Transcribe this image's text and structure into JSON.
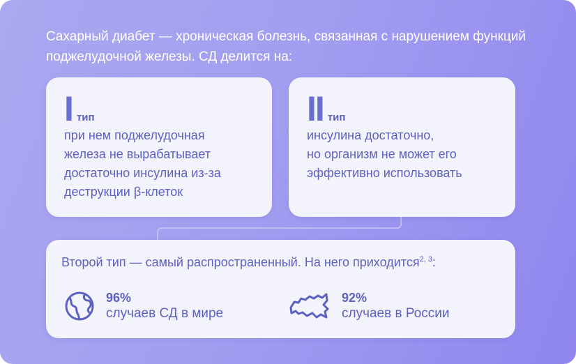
{
  "intro": "Сахарный диабет — хроническая болезнь, связанная с нарушением функций поджелудочной железы. СД делится на:",
  "types": [
    {
      "numeral": "I",
      "label": "тип",
      "description": "при нем поджелудочная\nжелеза не вырабатывает\nдостаточно инсулина из-за\nдеструкции β-клеток"
    },
    {
      "numeral": "II",
      "label": "тип",
      "description": "инсулина достаточно,\nно организм не может его\nэффективно использовать"
    }
  ],
  "summary": {
    "lead": "Второй тип — самый распространенный. На него приходится",
    "footnote": "2, 3",
    "lead_end": ":",
    "stats": [
      {
        "icon": "globe-icon",
        "value": "96%",
        "label": "случаев СД в мире"
      },
      {
        "icon": "russia-map-icon",
        "value": "92%",
        "label": "случаев в России"
      }
    ]
  },
  "colors": {
    "accent": "#5d61c0",
    "card": "#f3f3fb",
    "text_light": "#ffffff"
  }
}
